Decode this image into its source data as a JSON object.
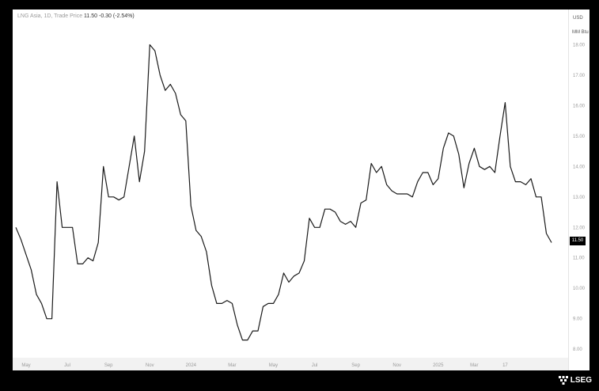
{
  "header": {
    "instrument": "LNG Asia, 1D, Trade Price",
    "last": "11.50",
    "change": "-0.30 (-2.54%)"
  },
  "axis_units": {
    "currency": "USD",
    "unit": "MM Btu"
  },
  "price_tag": "11.50",
  "brand": {
    "name": "LSEG"
  },
  "colors": {
    "line": "#1a1a1a",
    "background": "#ffffff",
    "frame": "#000000",
    "tag": "#000000"
  },
  "chart_data": {
    "type": "line",
    "title": "",
    "xlabel": "",
    "ylabel": "",
    "ylim": [
      7.25,
      19.0
    ],
    "y_ticks": [
      "8.00",
      "9.00",
      "10.00",
      "11.00",
      "12.00",
      "13.00",
      "14.00",
      "15.00",
      "16.00",
      "17.00",
      "18.00"
    ],
    "x_ticks": [
      {
        "label": "May",
        "i": 2
      },
      {
        "label": "Jul",
        "i": 10
      },
      {
        "label": "Sep",
        "i": 18
      },
      {
        "label": "Nov",
        "i": 26
      },
      {
        "label": "2024",
        "i": 34
      },
      {
        "label": "Mar",
        "i": 42
      },
      {
        "label": "May",
        "i": 50
      },
      {
        "label": "Jul",
        "i": 58
      },
      {
        "label": "Sep",
        "i": 66
      },
      {
        "label": "Nov",
        "i": 74
      },
      {
        "label": "2025",
        "i": 82
      },
      {
        "label": "Mar",
        "i": 89
      },
      {
        "label": "17",
        "i": 95
      }
    ],
    "series": [
      {
        "values": [
          12.0,
          11.6,
          11.1,
          10.6,
          9.8,
          9.5,
          9.0,
          9.0,
          13.5,
          12.0,
          12.0,
          12.0,
          10.8,
          10.8,
          11.0,
          10.9,
          11.5,
          14.0,
          13.0,
          13.0,
          12.9,
          13.0,
          14.0,
          15.0,
          13.5,
          14.5,
          18.0,
          17.8,
          17.0,
          16.5,
          16.7,
          16.4,
          15.7,
          15.5,
          12.7,
          11.9,
          11.7,
          11.2,
          10.1,
          9.5,
          9.5,
          9.6,
          9.5,
          8.8,
          8.3,
          8.3,
          8.6,
          8.6,
          9.4,
          9.5,
          9.5,
          9.8,
          10.5,
          10.2,
          10.4,
          10.5,
          10.9,
          12.3,
          12.0,
          12.0,
          12.6,
          12.6,
          12.5,
          12.2,
          12.1,
          12.2,
          12.0,
          12.8,
          12.9,
          14.1,
          13.8,
          14.0,
          13.4,
          13.2,
          13.1,
          13.1,
          13.1,
          13.0,
          13.5,
          13.8,
          13.8,
          13.4,
          13.6,
          14.6,
          15.1,
          15.0,
          14.4,
          13.3,
          14.1,
          14.6,
          14.0,
          13.9,
          14.0,
          13.8,
          15.0,
          16.1,
          14.0,
          13.5,
          13.5,
          13.4,
          13.6,
          13.0,
          13.0,
          11.8,
          11.5
        ]
      }
    ]
  }
}
